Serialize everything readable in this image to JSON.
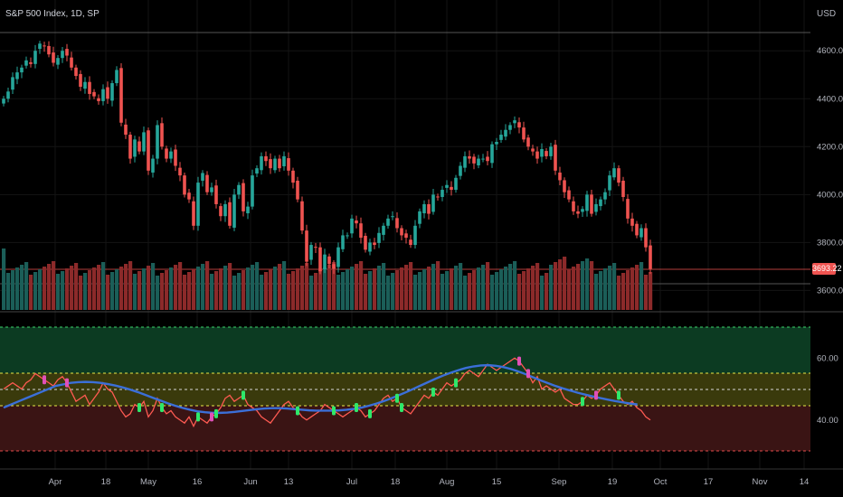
{
  "header": {
    "title": "S&P 500 Index, 1D, SP",
    "currency": "USD"
  },
  "last_price": "3693.22",
  "colors": {
    "up": "#26a69a",
    "down": "#ef5350",
    "vol_up": "#1b5e58",
    "vol_down": "#8c2a2a",
    "rsi_line": "#ff5a52",
    "ma_line": "#3b6fd8",
    "zone_green": "#0c3b22",
    "zone_yellow": "#3a3a0c",
    "zone_red": "#3a1414",
    "buy_marker": "#2ee86a",
    "sell_marker": "#e050b8"
  },
  "chart_data": [
    {
      "type": "candlestick",
      "ylabel": "USD",
      "ylim": [
        3530,
        4680
      ],
      "y_ticks": [
        "4600.00",
        "4400.00",
        "4200.00",
        "4000.00",
        "3800.00",
        "3600.00"
      ],
      "x_ticks": [
        "Apr",
        "18",
        "May",
        "16",
        "Jun",
        "13",
        "Jul",
        "18",
        "Aug",
        "15",
        "Sep",
        "19",
        "Oct",
        "17",
        "Nov",
        "14"
      ],
      "ohlc_close": [
        4400,
        4430,
        4490,
        4510,
        4530,
        4560,
        4545,
        4600,
        4630,
        4620,
        4585,
        4550,
        4570,
        4600,
        4580,
        4530,
        4495,
        4450,
        4470,
        4420,
        4410,
        4390,
        4440,
        4400,
        4465,
        4520,
        4300,
        4250,
        4150,
        4230,
        4180,
        4260,
        4100,
        4150,
        4290,
        4200,
        4150,
        4180,
        4120,
        4080,
        4000,
        3980,
        3870,
        4050,
        4090,
        4010,
        4030,
        3960,
        3910,
        3960,
        3870,
        4000,
        4040,
        3930,
        3950,
        4080,
        4110,
        4160,
        4140,
        4110,
        4150,
        4110,
        4160,
        4100,
        4050,
        3980,
        3850,
        3720,
        3790,
        3780,
        3680,
        3750,
        3710,
        3690,
        3780,
        3830,
        3830,
        3900,
        3880,
        3820,
        3770,
        3800,
        3790,
        3840,
        3870,
        3900,
        3910,
        3860,
        3830,
        3820,
        3790,
        3870,
        3930,
        3960,
        3920,
        4000,
        3990,
        4020,
        4040,
        4020,
        4070,
        4120,
        4160,
        4150,
        4130,
        4150,
        4150,
        4140,
        4210,
        4220,
        4250,
        4270,
        4290,
        4310,
        4280,
        4230,
        4200,
        4180,
        4150,
        4190,
        4160,
        4200,
        4100,
        4060,
        4010,
        3980,
        3930,
        3920,
        3940,
        4000,
        3920,
        3960,
        3980,
        4010,
        4080,
        4110,
        4050,
        3990,
        3900,
        3870,
        3830,
        3860,
        3780,
        3690
      ],
      "volume_up_fraction": "per-bar, see markers"
    },
    {
      "type": "line",
      "ylim": [
        30,
        75
      ],
      "y_ticks": [
        "60.00",
        "40.00"
      ],
      "levels": [
        70,
        55,
        50,
        45,
        30
      ],
      "rsi": [
        50,
        51,
        52,
        51,
        50,
        52,
        53,
        55,
        54,
        53,
        52,
        51,
        53,
        54,
        52,
        49,
        46,
        47,
        48,
        45,
        47,
        49,
        52,
        50,
        49,
        46,
        43,
        41,
        42,
        45,
        44,
        46,
        41,
        43,
        47,
        44,
        42,
        43,
        41,
        40,
        39,
        41,
        38,
        41,
        40,
        39,
        41,
        42,
        44,
        47,
        48,
        46,
        47,
        48,
        45,
        44,
        43,
        41,
        40,
        39,
        41,
        43,
        45,
        46,
        44,
        43,
        41,
        40,
        41,
        42,
        43,
        45,
        44,
        43,
        42,
        41,
        42,
        43,
        44,
        43,
        41,
        42,
        43,
        45,
        47,
        48,
        46,
        47,
        44,
        43,
        42,
        44,
        46,
        48,
        47,
        49,
        48,
        50,
        52,
        51,
        52,
        53,
        55,
        56,
        55,
        54,
        56,
        58,
        57,
        56,
        57,
        58,
        59,
        60,
        59,
        57,
        55,
        52,
        54,
        50,
        51,
        50,
        49,
        50,
        47,
        46,
        45,
        45,
        46,
        48,
        47,
        48,
        50,
        51,
        52,
        50,
        48,
        46,
        45,
        46,
        44,
        43,
        41,
        40
      ],
      "ma": [
        44,
        45,
        46,
        47,
        48,
        49,
        50,
        51,
        51.5,
        52,
        52.2,
        52.3,
        52.2,
        52,
        51.6,
        51.1,
        50.5,
        49.8,
        49,
        48.1,
        47.2,
        46.3,
        45.4,
        44.6,
        43.9,
        43.3,
        42.8,
        42.5,
        42.3,
        42.3,
        42.4,
        42.6,
        42.9,
        43.2,
        43.5,
        43.7,
        43.8,
        43.8,
        43.7,
        43.5,
        43.3,
        43.1,
        43,
        43,
        43,
        43.1,
        43.3,
        43.6,
        44,
        44.6,
        45.3,
        46.1,
        47,
        48,
        49,
        50.1,
        51.2,
        52.3,
        53.4,
        54.4,
        55.3,
        56.1,
        56.8,
        57.3,
        57.6,
        57.7,
        57.5,
        57.1,
        56.5,
        55.7,
        54.8,
        53.8,
        52.8,
        51.9,
        51,
        50.2,
        49.5,
        48.8,
        48.2,
        47.6,
        47.1,
        46.6,
        46.1,
        45.7,
        45.3,
        45
      ]
    }
  ]
}
